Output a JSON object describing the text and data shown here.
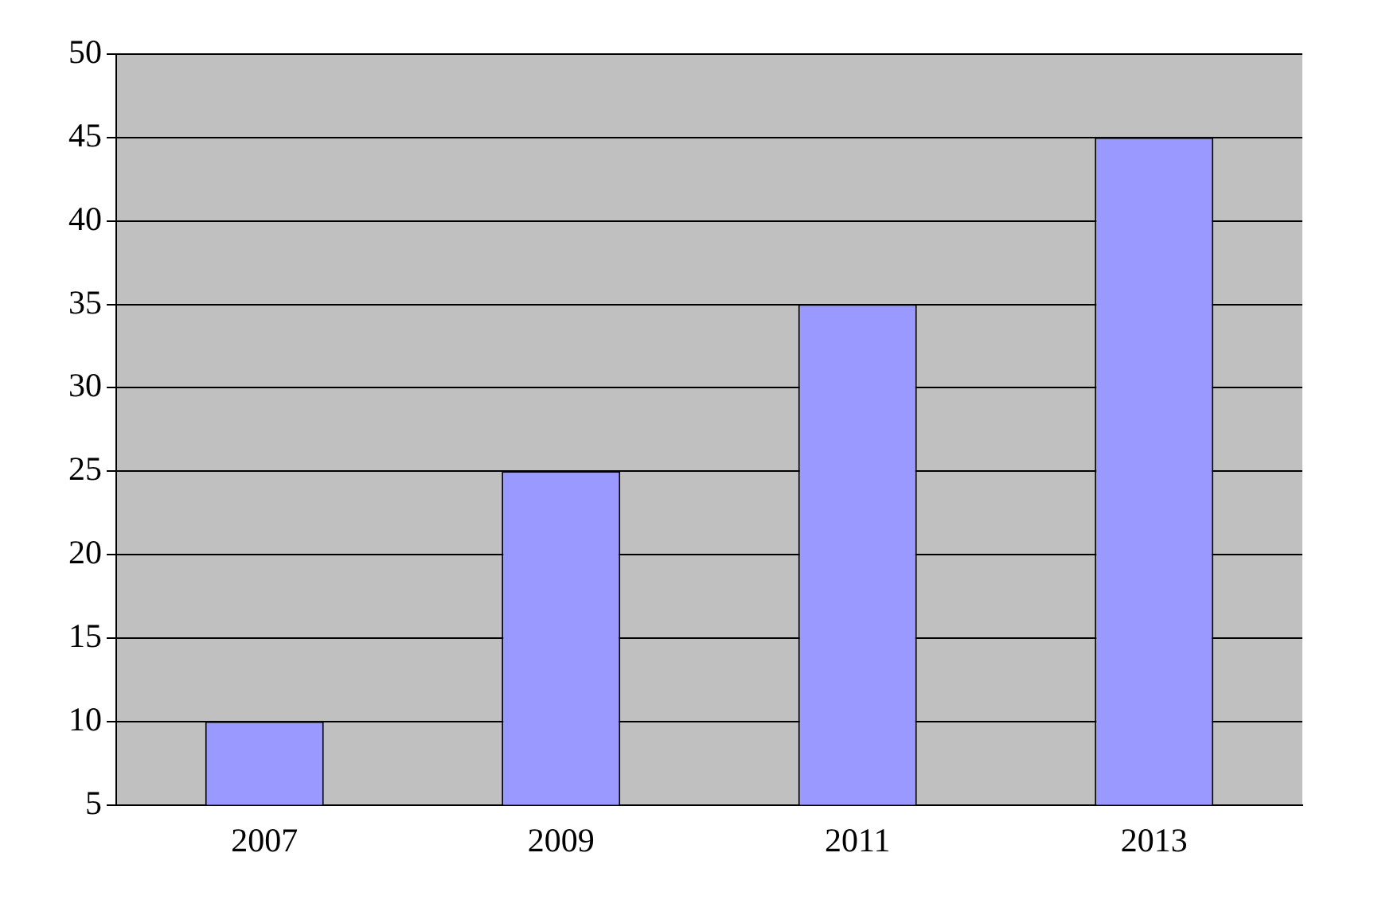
{
  "chart_data": {
    "type": "bar",
    "categories": [
      "2007",
      "2009",
      "2011",
      "2013"
    ],
    "values": [
      10,
      25,
      35,
      45
    ],
    "color": "#9999ff",
    "ylim": [
      5,
      50
    ],
    "yticks": [
      5,
      10,
      15,
      20,
      25,
      30,
      35,
      40,
      45,
      50
    ],
    "grid": "y",
    "legend": false
  }
}
